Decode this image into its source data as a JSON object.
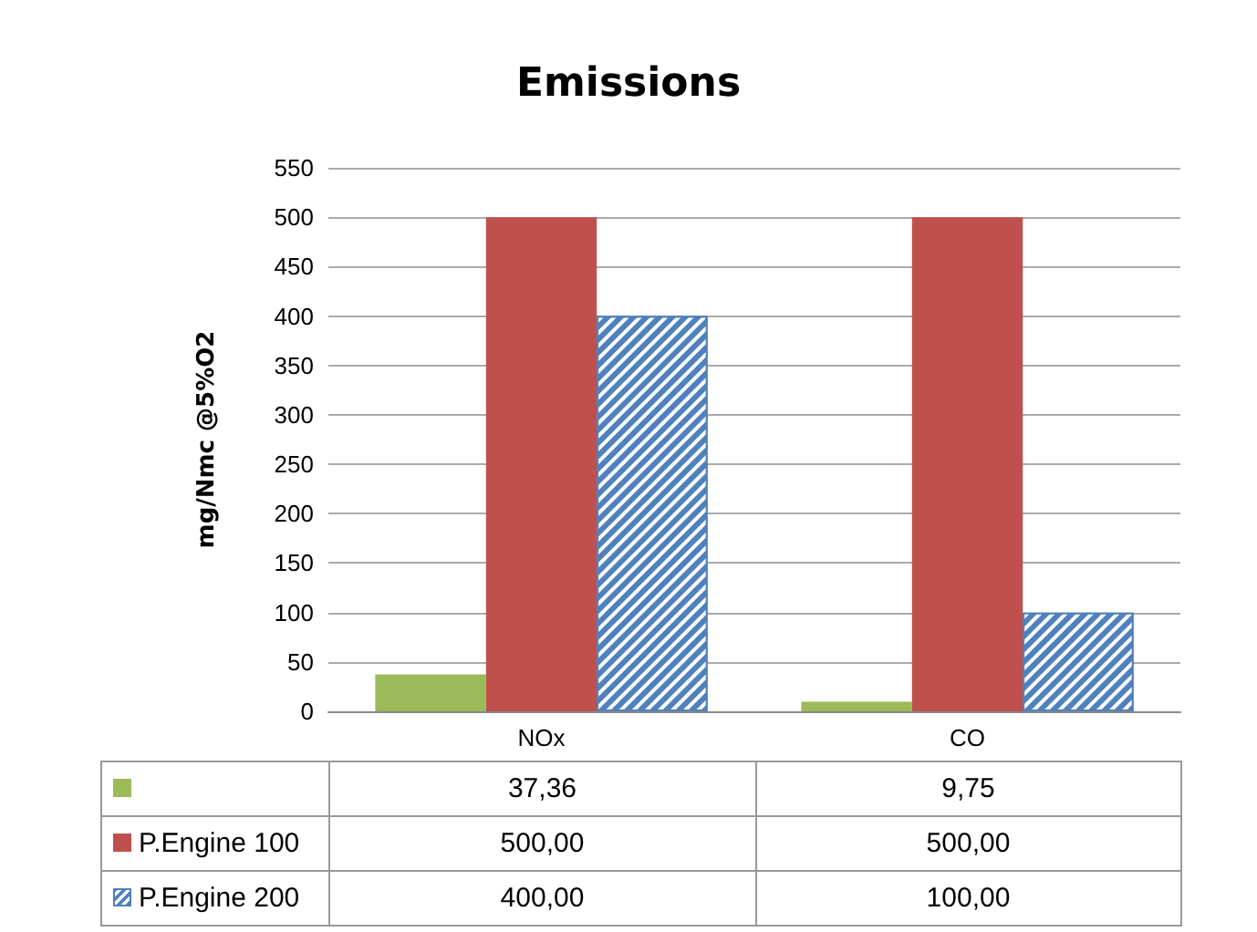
{
  "chart_data": {
    "type": "bar",
    "title": "Emissions",
    "ylabel": "mg/Nmc @5%O2",
    "categories": [
      "NOx",
      "CO"
    ],
    "series": [
      {
        "color": "#9bbb59",
        "values": [
          37.36,
          9.75
        ],
        "value_labels": [
          "37,36",
          "9,75"
        ]
      },
      {
        "name": "P.Engine 100",
        "color": "#c0504d",
        "values": [
          500,
          500
        ],
        "value_labels": [
          "500,00",
          "500,00"
        ]
      },
      {
        "name": "P.Engine 200",
        "color": "#4f81bd",
        "values": [
          400,
          100
        ],
        "value_labels": [
          "400,00",
          "100,00"
        ]
      }
    ],
    "ylim": [
      0,
      550
    ],
    "yticks": [
      0,
      50,
      100,
      150,
      200,
      250,
      300,
      350,
      400,
      450,
      500,
      550
    ],
    "grid": "y",
    "legend": "bottom"
  }
}
